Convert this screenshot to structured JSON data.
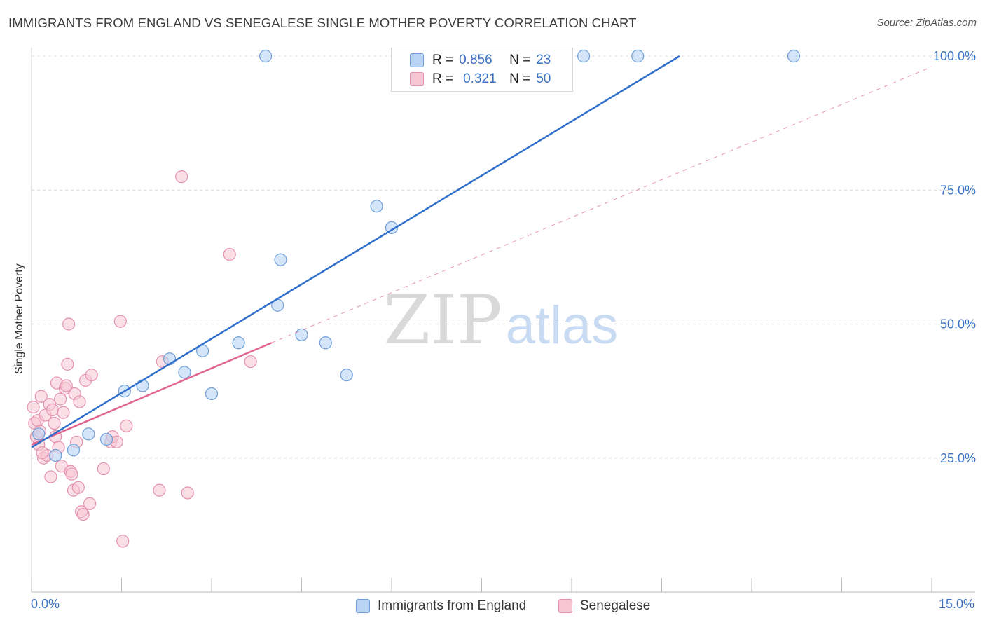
{
  "title": "IMMIGRANTS FROM ENGLAND VS SENEGALESE SINGLE MOTHER POVERTY CORRELATION CHART",
  "source": "Source: ZipAtlas.com",
  "colors": {
    "blue_fill": "#b9d3f5",
    "blue_stroke": "#6f9fd8",
    "blue_line": "#2f6fcb",
    "pink_fill": "#f7c4d3",
    "pink_stroke": "#e491ad",
    "pink_line": "#e0658e",
    "axis_text": "#3a72c4",
    "grid": "#d9d9d9"
  },
  "legend": {
    "rows": [
      {
        "r_label": "R =",
        "r_value": "0.856",
        "n_label": "N =",
        "n_value": "23"
      },
      {
        "r_label": "R =",
        "r_value": "0.321",
        "n_label": "N =",
        "n_value": "50"
      }
    ]
  },
  "bottom_legend": {
    "series1": "Immigrants from England",
    "series2": "Senegalese"
  },
  "watermark": {
    "part1": "ZIP",
    "part2": "atlas"
  },
  "chart_data": {
    "type": "scatter",
    "title": "IMMIGRANTS FROM ENGLAND VS SENEGALESE SINGLE MOTHER POVERTY CORRELATION CHART",
    "xlabel": "",
    "ylabel": "Single Mother Poverty",
    "xlim": [
      0,
      15
    ],
    "ylim": [
      0,
      100
    ],
    "x_tick_labels": [
      "0.0%",
      "15.0%"
    ],
    "y_ticks": [
      25,
      50,
      75,
      100
    ],
    "y_tick_labels": [
      "25.0%",
      "50.0%",
      "75.0%",
      "100.0%"
    ],
    "grid": true,
    "series": [
      {
        "name": "Immigrants from England",
        "r": 0.856,
        "n": 23,
        "points": [
          [
            0.12,
            29.5
          ],
          [
            0.4,
            25.5
          ],
          [
            0.7,
            26.5
          ],
          [
            0.95,
            29.5
          ],
          [
            1.25,
            28.5
          ],
          [
            1.55,
            37.5
          ],
          [
            1.85,
            38.5
          ],
          [
            2.3,
            43.5
          ],
          [
            2.55,
            41.0
          ],
          [
            2.85,
            45.0
          ],
          [
            3.0,
            37.0
          ],
          [
            3.45,
            46.5
          ],
          [
            3.9,
            100.0
          ],
          [
            4.1,
            53.5
          ],
          [
            4.15,
            62.0
          ],
          [
            4.5,
            48.0
          ],
          [
            4.9,
            46.5
          ],
          [
            5.25,
            40.5
          ],
          [
            5.75,
            72.0
          ],
          [
            6.0,
            68.0
          ],
          [
            9.2,
            100.0
          ],
          [
            10.1,
            100.0
          ],
          [
            12.7,
            100.0
          ]
        ],
        "trend": {
          "x": [
            0.0,
            10.8
          ],
          "y": [
            27.0,
            100.0
          ],
          "style": "solid"
        }
      },
      {
        "name": "Senegalese",
        "r": 0.321,
        "n": 50,
        "points": [
          [
            0.03,
            34.5
          ],
          [
            0.05,
            31.5
          ],
          [
            0.08,
            29.0
          ],
          [
            0.1,
            32.0
          ],
          [
            0.12,
            27.5
          ],
          [
            0.14,
            30.0
          ],
          [
            0.16,
            36.5
          ],
          [
            0.2,
            25.0
          ],
          [
            0.23,
            33.0
          ],
          [
            0.26,
            25.5
          ],
          [
            0.3,
            35.0
          ],
          [
            0.32,
            21.5
          ],
          [
            0.35,
            34.0
          ],
          [
            0.38,
            31.5
          ],
          [
            0.4,
            29.0
          ],
          [
            0.42,
            39.0
          ],
          [
            0.45,
            27.0
          ],
          [
            0.48,
            36.0
          ],
          [
            0.5,
            23.5
          ],
          [
            0.53,
            33.5
          ],
          [
            0.56,
            38.0
          ],
          [
            0.58,
            38.5
          ],
          [
            0.6,
            42.5
          ],
          [
            0.62,
            50.0
          ],
          [
            0.65,
            22.5
          ],
          [
            0.67,
            22.0
          ],
          [
            0.7,
            19.0
          ],
          [
            0.72,
            37.0
          ],
          [
            0.75,
            28.0
          ],
          [
            0.78,
            19.5
          ],
          [
            0.8,
            35.5
          ],
          [
            0.83,
            15.0
          ],
          [
            0.86,
            14.5
          ],
          [
            0.9,
            39.5
          ],
          [
            0.97,
            16.5
          ],
          [
            1.0,
            40.5
          ],
          [
            1.2,
            23.0
          ],
          [
            1.32,
            28.0
          ],
          [
            1.35,
            29.0
          ],
          [
            1.42,
            28.0
          ],
          [
            1.48,
            50.5
          ],
          [
            1.52,
            9.5
          ],
          [
            1.58,
            31.0
          ],
          [
            2.13,
            19.0
          ],
          [
            2.18,
            43.0
          ],
          [
            2.5,
            77.5
          ],
          [
            2.6,
            18.5
          ],
          [
            3.3,
            63.0
          ],
          [
            3.65,
            43.0
          ],
          [
            0.18,
            26.0
          ]
        ],
        "trend": {
          "x": [
            0.0,
            4.0
          ],
          "y": [
            27.5,
            46.5
          ],
          "style": "solid"
        },
        "trend_extension": {
          "x": [
            4.0,
            15.0
          ],
          "y": [
            46.5,
            98.0
          ],
          "style": "dashed"
        }
      }
    ]
  }
}
